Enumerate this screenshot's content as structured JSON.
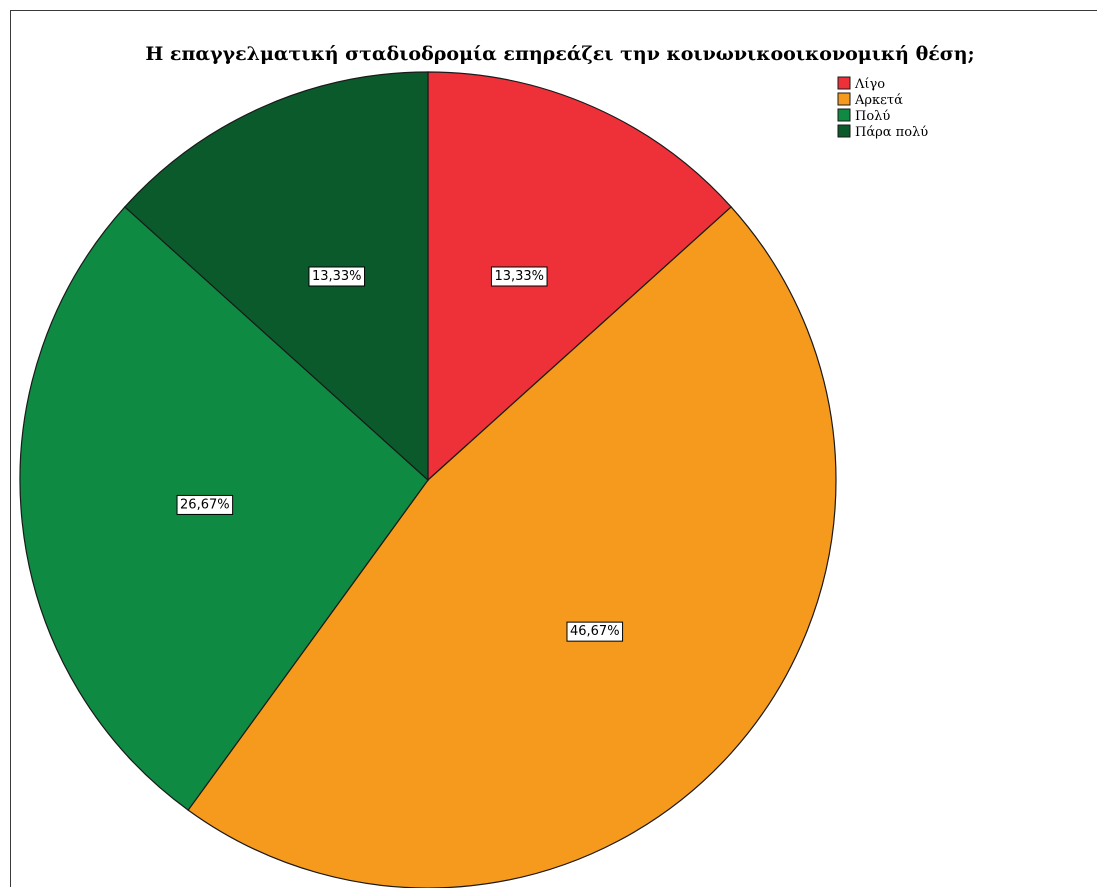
{
  "chart_data": {
    "type": "pie",
    "title": "Η επαγγελματική σταδιοδρομία επηρεάζει την κοινωνικοοικονομική θέση;",
    "categories": [
      "Λίγο",
      "Αρκετά",
      "Πολύ",
      "Πάρα πολύ"
    ],
    "values": [
      13.33,
      46.67,
      26.67,
      13.33
    ],
    "labels": [
      "13,33%",
      "46,67%",
      "26,67%",
      "13,33%"
    ],
    "colors": [
      "#ee3039",
      "#f59a1c",
      "#0f8a43",
      "#0b5a2c"
    ],
    "start_angle": "12 o'clock",
    "direction": "clockwise",
    "legend": {
      "position": "top-right",
      "entries": [
        "Λίγο",
        "Αρκετά",
        "Πολύ",
        "Πάρα πολύ"
      ]
    }
  }
}
